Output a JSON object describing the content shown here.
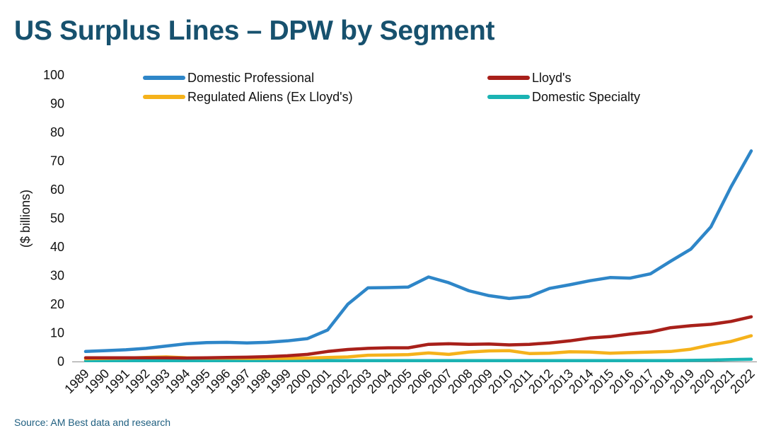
{
  "header": {
    "title": "US Surplus Lines – DPW by Segment"
  },
  "footer": {
    "source": "Source: AM Best data and research"
  },
  "chart_data": {
    "type": "line",
    "title": "US Surplus Lines – DPW by Segment",
    "xlabel": "",
    "ylabel": "($ billions)",
    "ylim": [
      0,
      100
    ],
    "yticks": [
      0,
      10,
      20,
      30,
      40,
      50,
      60,
      70,
      80,
      90,
      100
    ],
    "grid": false,
    "legend_position": "top",
    "x": [
      "1989",
      "1990",
      "1991",
      "1992",
      "1993",
      "1994",
      "1995",
      "1996",
      "1997",
      "1998",
      "1999",
      "2000",
      "2001",
      "2002",
      "2003",
      "2004",
      "2005",
      "2006",
      "2007",
      "2008",
      "2009",
      "2010",
      "2011",
      "2012",
      "2013",
      "2014",
      "2015",
      "2016",
      "2017",
      "2018",
      "2019",
      "2020",
      "2021",
      "2022"
    ],
    "series": [
      {
        "name": "Domestic Professional",
        "color": "#2e86c8",
        "values": [
          3.5,
          3.8,
          4.1,
          4.6,
          5.4,
          6.2,
          6.6,
          6.7,
          6.5,
          6.7,
          7.2,
          8.0,
          11.0,
          20.0,
          25.7,
          25.8,
          26.0,
          29.5,
          27.5,
          24.7,
          23.0,
          22.0,
          22.7,
          25.5,
          26.8,
          28.2,
          29.3,
          29.1,
          30.6,
          35.0,
          39.2,
          47.0,
          61.0,
          73.5
        ]
      },
      {
        "name": "Lloyd's",
        "color": "#a8201a",
        "values": [
          1.3,
          1.3,
          1.3,
          1.3,
          1.3,
          1.2,
          1.3,
          1.4,
          1.5,
          1.7,
          2.0,
          2.5,
          3.5,
          4.2,
          4.6,
          4.8,
          4.8,
          6.0,
          6.2,
          6.0,
          6.1,
          5.8,
          6.0,
          6.5,
          7.2,
          8.2,
          8.7,
          9.6,
          10.3,
          11.8,
          12.5,
          13.0,
          14.0,
          15.6
        ]
      },
      {
        "name": "Regulated Aliens (Ex Lloyd's)",
        "color": "#f5b21b",
        "values": [
          1.0,
          1.1,
          1.2,
          1.4,
          1.6,
          1.3,
          1.2,
          1.2,
          1.1,
          1.1,
          1.1,
          1.2,
          1.4,
          1.6,
          2.2,
          2.3,
          2.4,
          3.0,
          2.5,
          3.3,
          3.7,
          3.8,
          2.8,
          2.9,
          3.4,
          3.3,
          2.9,
          3.1,
          3.3,
          3.5,
          4.3,
          5.8,
          7.0,
          9.0
        ]
      },
      {
        "name": "Domestic Specialty",
        "color": "#1bb3b3",
        "values": [
          0.3,
          0.3,
          0.3,
          0.3,
          0.3,
          0.3,
          0.3,
          0.3,
          0.3,
          0.3,
          0.3,
          0.3,
          0.3,
          0.3,
          0.3,
          0.3,
          0.3,
          0.3,
          0.3,
          0.3,
          0.3,
          0.3,
          0.3,
          0.3,
          0.3,
          0.3,
          0.3,
          0.3,
          0.3,
          0.3,
          0.4,
          0.5,
          0.7,
          0.8
        ]
      }
    ]
  }
}
